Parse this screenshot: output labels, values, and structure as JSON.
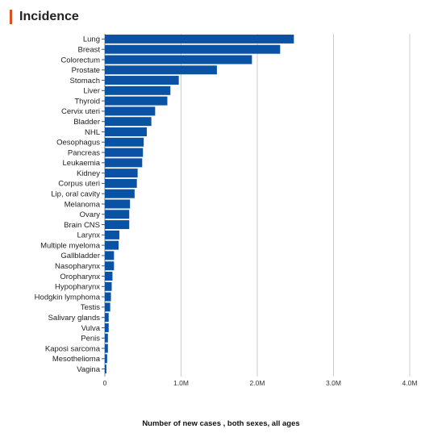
{
  "header": {
    "title": "Incidence",
    "accent_color": "#d9531e"
  },
  "chart_data": {
    "type": "bar",
    "orientation": "horizontal",
    "bar_color": "#0a52a4",
    "categories": [
      "Lung",
      "Breast",
      "Colorectum",
      "Prostate",
      "Stomach",
      "Liver",
      "Thyroid",
      "Cervix uteri",
      "Bladder",
      "NHL",
      "Oesophagus",
      "Pancreas",
      "Leukaemia",
      "Kidney",
      "Corpus uteri",
      "Lip, oral cavity",
      "Melanoma",
      "Ovary",
      "Brain CNS",
      "Larynx",
      "Multiple myeloma",
      "Gallbladder",
      "Nasopharynx",
      "Oropharynx",
      "Hypopharynx",
      "Hodgkin lymphoma",
      "Testis",
      "Salivary glands",
      "Vulva",
      "Penis",
      "Kaposi sarcoma",
      "Mesothelioma",
      "Vagina"
    ],
    "values": [
      2480000,
      2300000,
      1930000,
      1470000,
      970000,
      860000,
      820000,
      660000,
      610000,
      550000,
      510000,
      500000,
      490000,
      430000,
      420000,
      390000,
      330000,
      320000,
      320000,
      190000,
      180000,
      120000,
      120000,
      100000,
      90000,
      80000,
      70000,
      50000,
      50000,
      40000,
      40000,
      30000,
      20000
    ],
    "xlim": [
      0,
      4000000
    ],
    "xticks": [
      0,
      1000000,
      2000000,
      3000000,
      4000000
    ],
    "xtick_labels": [
      "0",
      "1.0M",
      "2.0M",
      "3.0M",
      "4.0M"
    ],
    "xlabel": "Number of new cases , both sexes, all ages",
    "grid": true
  }
}
